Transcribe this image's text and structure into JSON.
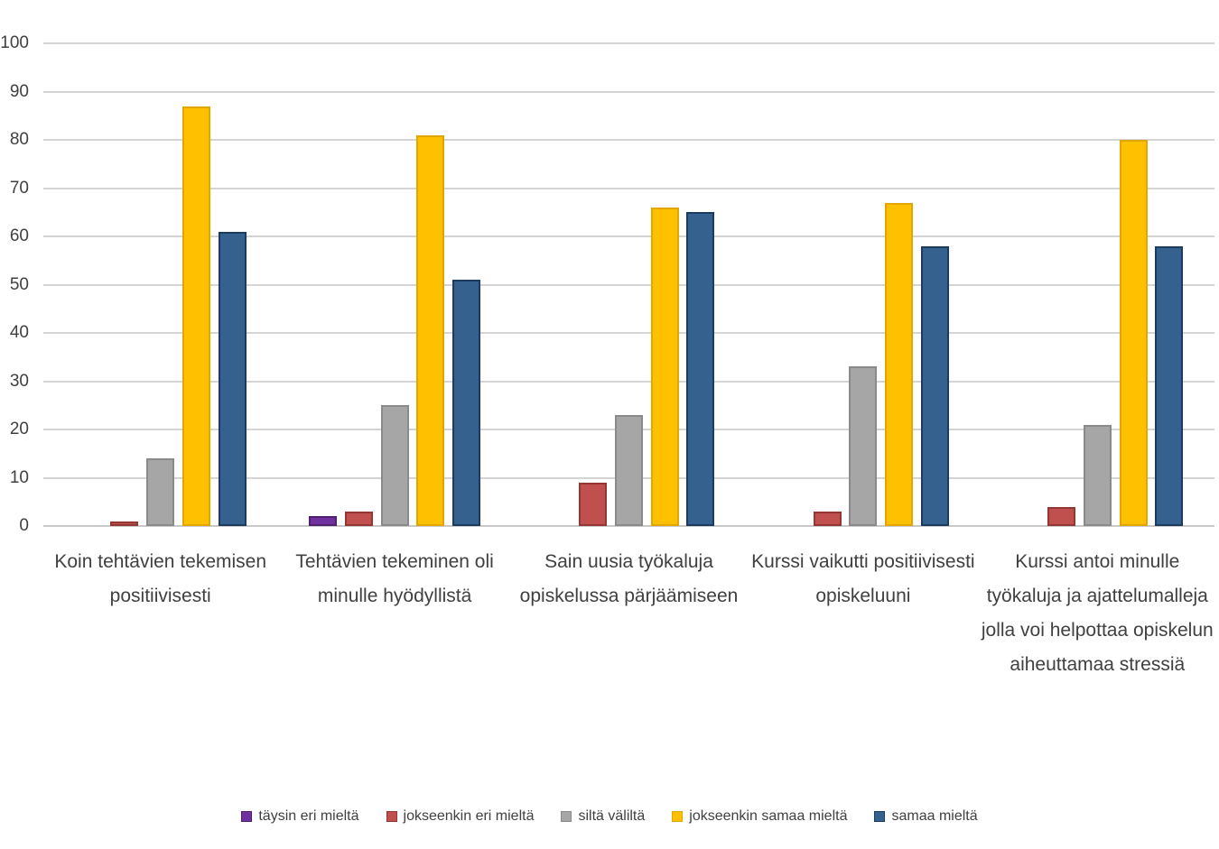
{
  "chart_data": {
    "type": "bar",
    "title": "",
    "xlabel": "",
    "ylabel": "",
    "ylim": [
      0,
      100
    ],
    "ytick_step": 10,
    "yticks": [
      "0",
      "10",
      "20",
      "30",
      "40",
      "50",
      "60",
      "70",
      "80",
      "90",
      "100"
    ],
    "grid": true,
    "legend_position": "bottom",
    "categories": [
      "Koin tehtävien tekemisen positiivisesti",
      "Tehtävien tekeminen oli minulle hyödyllistä",
      "Sain uusia työkaluja opiskelussa pärjäämiseen",
      "Kurssi vaikutti positiivisesti opiskeluuni",
      "Kurssi antoi minulle työkaluja ja ajattelumalleja jolla voi helpottaa opiskelun aiheuttamaa stressiä"
    ],
    "series": [
      {
        "name": "täysin eri mieltä",
        "color": "#7030A0",
        "border_color": "#4f2170",
        "values": [
          0,
          2,
          0,
          0,
          0
        ]
      },
      {
        "name": "jokseenkin eri mieltä",
        "color": "#C0504D",
        "border_color": "#943634",
        "values": [
          1,
          3,
          9,
          3,
          4
        ]
      },
      {
        "name": "siltä väliltä",
        "color": "#A6A6A6",
        "border_color": "#8a8a8a",
        "values": [
          14,
          25,
          23,
          33,
          21
        ]
      },
      {
        "name": "jokseenkin samaa mieltä",
        "color": "#FFC000",
        "border_color": "#e2a600",
        "values": [
          87,
          81,
          66,
          67,
          80
        ]
      },
      {
        "name": "samaa mieltä",
        "color": "#35618F",
        "border_color": "#1b3b60",
        "values": [
          61,
          51,
          65,
          58,
          58
        ]
      }
    ],
    "colors": {
      "gridline": "#d4d4d4",
      "axis_line": "#c9c9c9",
      "text": "#404040",
      "background": "#ffffff"
    }
  }
}
